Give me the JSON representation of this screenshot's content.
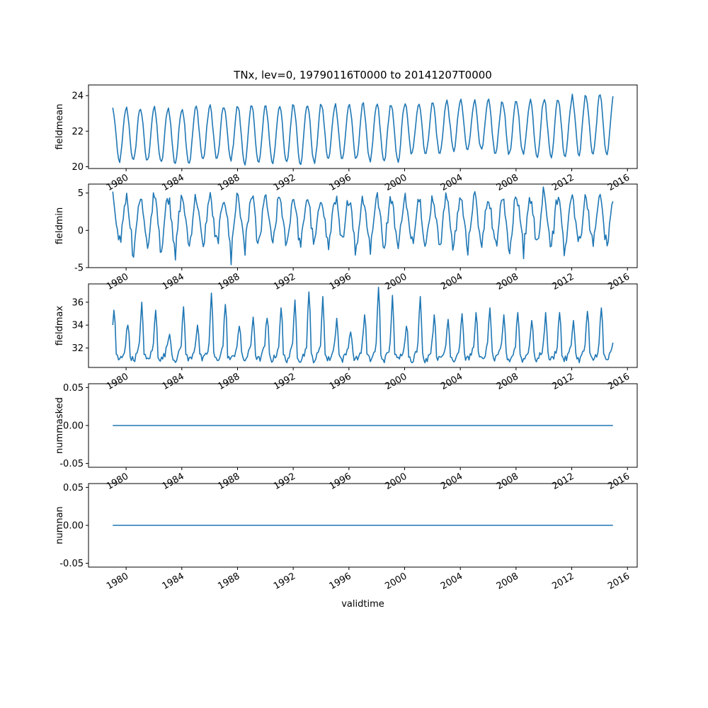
{
  "chart_data": {
    "type": "line",
    "title": "TNx, lev=0, 19790116T0000 to 20141207T0000",
    "xlabel": "validtime",
    "x_range": [
      "1979-01-16",
      "2014-12-07"
    ],
    "xlim_years": [
      1977.3,
      2016.7
    ],
    "xticks": [
      "1980",
      "1984",
      "1988",
      "1992",
      "1996",
      "2000",
      "2004",
      "2008",
      "2012",
      "2016"
    ],
    "line_color": "#1f77b4",
    "panels": [
      {
        "ylabel": "fieldmean",
        "ylim": [
          19.9,
          24.6
        ],
        "yticks": [
          "20",
          "22",
          "24"
        ],
        "ytick_values": [
          20,
          22,
          24
        ],
        "baseline": [
          23.3,
          23.3,
          23.4,
          23.4,
          23.5,
          23.5,
          23.5,
          23.6,
          23.7,
          23.7,
          23.8,
          24.0
        ],
        "amplitude": [
          3.0,
          3.1,
          3.0,
          3.2,
          3.3,
          3.1,
          3.2,
          2.9,
          2.8,
          3.0,
          3.2,
          3.3
        ]
      },
      {
        "ylabel": "fieldmin",
        "ylim": [
          -5.0,
          6.2
        ],
        "yticks": [
          "-5",
          "0",
          "5"
        ],
        "ytick_values": [
          -5,
          0,
          5
        ]
      },
      {
        "ylabel": "fieldmax",
        "ylim": [
          30.3,
          37.6
        ],
        "yticks": [
          "32",
          "34",
          "36"
        ],
        "ytick_values": [
          32,
          34,
          36
        ],
        "annual_peaks": [
          35.3,
          34.0,
          36.0,
          35.3,
          33.2,
          35.6,
          34.0,
          36.8,
          35.8,
          33.9,
          34.7,
          34.6,
          35.5,
          36.2,
          36.9,
          36.5,
          34.6,
          33.4,
          34.9,
          37.3,
          36.6,
          33.9,
          36.5,
          34.9,
          34.5,
          35.0,
          35.1,
          35.5,
          34.9,
          35.1,
          34.4,
          35.1,
          35.1,
          34.4,
          35.2,
          35.5
        ],
        "monthly_base": [
          32.8,
          32.4,
          31.8,
          31.4,
          31.2,
          31.0,
          31.0,
          31.1,
          31.3,
          31.5,
          31.8,
          32.3
        ]
      },
      {
        "ylabel": "nummasked",
        "ylim": [
          -0.055,
          0.055
        ],
        "yticks": [
          "-0.05",
          "0.00",
          "0.05"
        ],
        "ytick_values": [
          -0.05,
          0.0,
          0.05
        ],
        "constant_value": 0.0
      },
      {
        "ylabel": "numnan",
        "ylim": [
          -0.055,
          0.055
        ],
        "yticks": [
          "-0.05",
          "0.00",
          "0.05"
        ],
        "ytick_values": [
          -0.05,
          0.0,
          0.05
        ],
        "constant_value": 0.0
      }
    ]
  }
}
